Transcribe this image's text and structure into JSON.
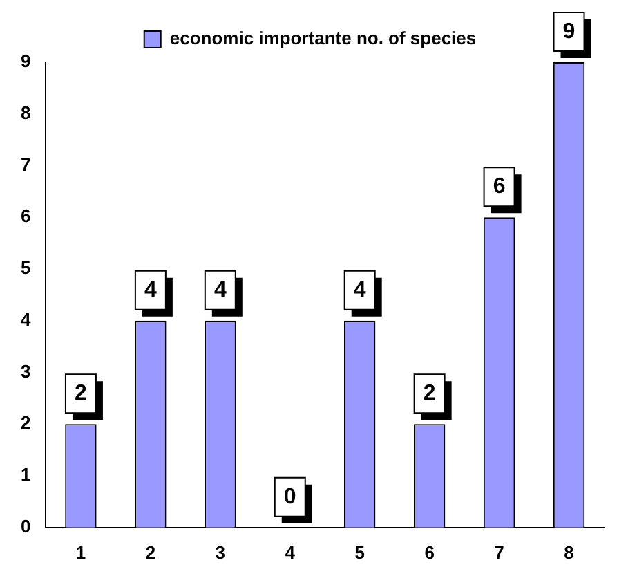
{
  "chart_data": {
    "type": "bar",
    "categories": [
      "1",
      "2",
      "3",
      "4",
      "5",
      "6",
      "7",
      "8"
    ],
    "series": [
      {
        "name": "economic importante no. of species",
        "color": "#9999ff",
        "values": [
          2,
          4,
          4,
          0,
          4,
          2,
          6,
          9
        ]
      }
    ],
    "ylim": [
      0,
      9
    ],
    "yticks": [
      0,
      1,
      2,
      3,
      4,
      5,
      6,
      7,
      8,
      9
    ],
    "grid": false,
    "legend": "top",
    "data_labels": true
  }
}
